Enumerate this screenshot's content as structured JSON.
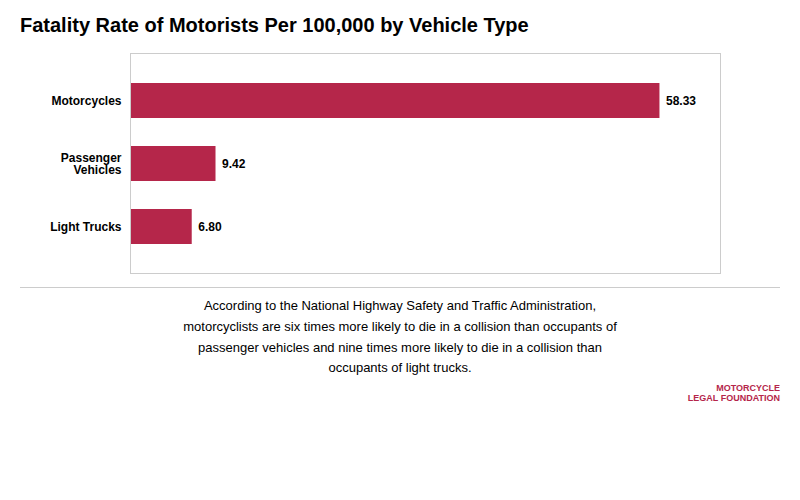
{
  "chart_data": {
    "type": "bar",
    "orientation": "horizontal",
    "title": "Fatality Rate of Motorists Per 100,000 by Vehicle Type",
    "categories": [
      "Motorcycles",
      "Passenger\nVehicles",
      "Light Trucks"
    ],
    "values": [
      58.33,
      9.42,
      6.8
    ],
    "value_labels": [
      "58.33",
      "9.42",
      "6.80"
    ],
    "data_labels": true,
    "color": "#b5264a",
    "xlim": [
      0,
      65
    ],
    "tick_labels": "y",
    "grid": false,
    "annotations": [
      "According to the National Highway Safety and Traffic Administration,\nmotorcyclists are six times more likely to die in a collision than occupants of\npassenger vehicles and nine times more likely to die in a collision than\noccupants of light trucks.",
      "MOTORCYCLE\nLEGAL FOUNDATION"
    ]
  }
}
